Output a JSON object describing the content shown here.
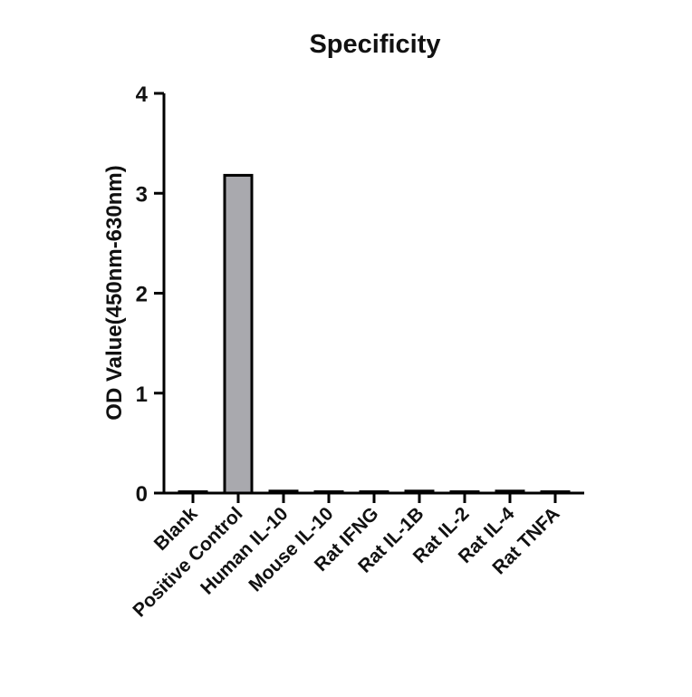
{
  "chart_data": {
    "type": "bar",
    "title": "Specificity",
    "xlabel": "",
    "ylabel": "OD Value(450nm-630nm)",
    "categories": [
      "Blank",
      "Positive Control",
      "Human IL-10",
      "Mouse IL-10",
      "Rat IFNG",
      "Rat IL-1B",
      "Rat IL-2",
      "Rat IL-4",
      "Rat TNFA"
    ],
    "values": [
      0.01,
      3.18,
      0.02,
      0.01,
      0.01,
      0.02,
      0.01,
      0.02,
      0.01
    ],
    "ylim": [
      0,
      4
    ],
    "yticks": [
      0,
      1,
      2,
      3,
      4
    ],
    "grid": false,
    "legend": "none",
    "colors": {
      "bar_fill": "#a9a9ae",
      "bar_stroke": "#000000",
      "axis": "#000000"
    }
  }
}
